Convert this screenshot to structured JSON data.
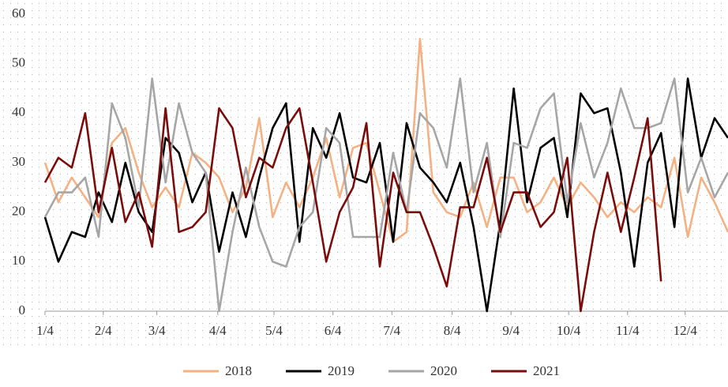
{
  "chart_data": {
    "type": "line",
    "x": [
      0,
      1,
      2,
      3,
      4,
      5,
      6,
      7,
      8,
      9,
      10,
      11,
      12,
      13,
      14,
      15,
      16,
      17,
      18,
      19,
      20,
      21,
      22,
      23,
      24,
      25,
      26,
      27,
      28,
      29,
      30,
      31,
      32,
      33,
      34,
      35,
      36,
      37,
      38,
      39,
      40,
      41,
      42,
      43,
      44,
      45,
      46,
      47,
      48,
      49,
      50,
      51
    ],
    "series": [
      {
        "name": "2018",
        "color": "#f4b183",
        "values": [
          30,
          22,
          27,
          23,
          19,
          34,
          37,
          28,
          21,
          25,
          21,
          32,
          30,
          27,
          20,
          25,
          39,
          19,
          26,
          21,
          27,
          35,
          23,
          33,
          34,
          24,
          14,
          16,
          55,
          24,
          20,
          19,
          26,
          17,
          27,
          27,
          20,
          22,
          27,
          21,
          26,
          23,
          19,
          22,
          20,
          23,
          21,
          31,
          15,
          27,
          22,
          16
        ]
      },
      {
        "name": "2019",
        "color": "#000000",
        "values": [
          19,
          10,
          16,
          15,
          24,
          18,
          30,
          20,
          16,
          35,
          32,
          22,
          28,
          12,
          24,
          15,
          27,
          37,
          42,
          14,
          37,
          31,
          40,
          27,
          26,
          34,
          14,
          38,
          29,
          26,
          22,
          30,
          17,
          0,
          18,
          45,
          22,
          33,
          35,
          19,
          44,
          40,
          41,
          28,
          9,
          30,
          36,
          17,
          47,
          31,
          39,
          35
        ]
      },
      {
        "name": "2020",
        "color": "#a6a6a6",
        "values": [
          19,
          24,
          24,
          27,
          15,
          42,
          35,
          21,
          47,
          26,
          42,
          32,
          28,
          0,
          16,
          29,
          17,
          10,
          9,
          17,
          20,
          37,
          34,
          15,
          15,
          15,
          32,
          20,
          40,
          37,
          29,
          47,
          24,
          34,
          15,
          34,
          33,
          41,
          44,
          22,
          38,
          27,
          34,
          45,
          37,
          37,
          38,
          47,
          24,
          31,
          23,
          28
        ]
      },
      {
        "name": "2021",
        "color": "#7b0c0c",
        "values": [
          26,
          31,
          29,
          40,
          20,
          33,
          18,
          24,
          13,
          41,
          16,
          17,
          20,
          41,
          37,
          23,
          31,
          29,
          37,
          41,
          26,
          10,
          20,
          25,
          38,
          9,
          28,
          20,
          20,
          13,
          5,
          21,
          21,
          31,
          16,
          24,
          24,
          17,
          20,
          31,
          0,
          16,
          28,
          16,
          27,
          39,
          6,
          null,
          null,
          null,
          null,
          null
        ]
      }
    ],
    "xlim": [
      0,
      51
    ],
    "xticks": [
      {
        "value": 0,
        "label": "1/4"
      },
      {
        "value": 4.35,
        "label": "2/4"
      },
      {
        "value": 8.35,
        "label": "3/4"
      },
      {
        "value": 12.9,
        "label": "4/4"
      },
      {
        "value": 17.1,
        "label": "5/4"
      },
      {
        "value": 21.5,
        "label": "6/4"
      },
      {
        "value": 25.9,
        "label": "7/4"
      },
      {
        "value": 30.4,
        "label": "8/4"
      },
      {
        "value": 34.8,
        "label": "9/4"
      },
      {
        "value": 39.1,
        "label": "10/4"
      },
      {
        "value": 43.5,
        "label": "11/4"
      },
      {
        "value": 47.8,
        "label": "12/4"
      }
    ],
    "ylim": [
      0,
      60
    ],
    "yticks": [
      0,
      10,
      20,
      30,
      40,
      50,
      60
    ],
    "grid": false,
    "legend": "bottom"
  }
}
